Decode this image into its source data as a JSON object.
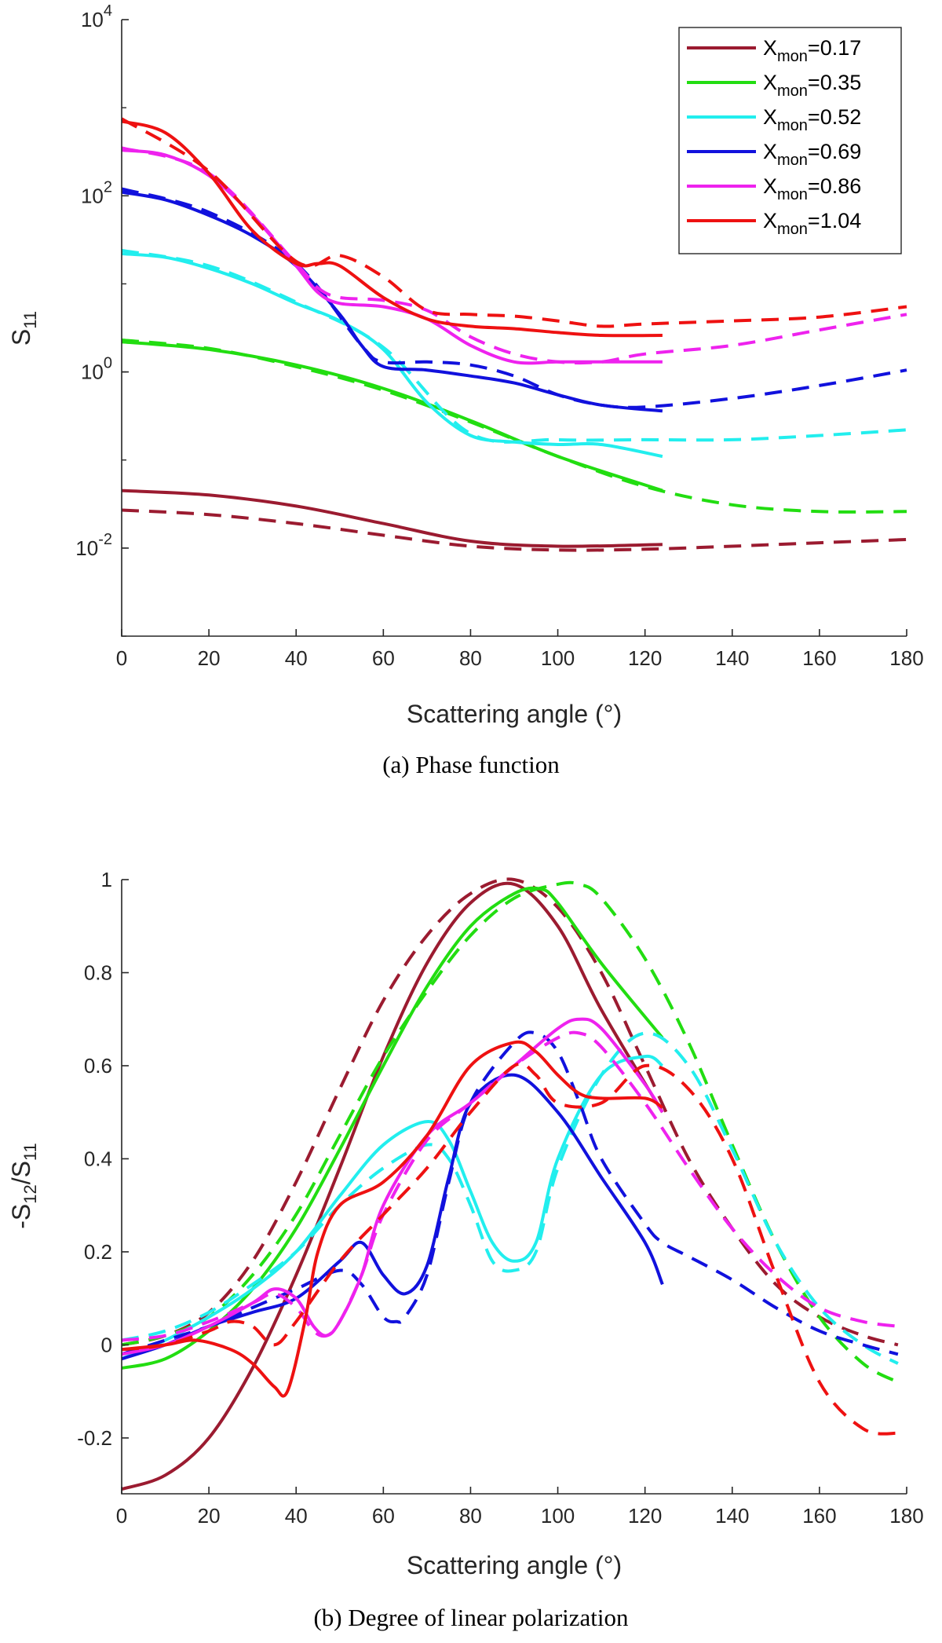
{
  "chart_data": [
    {
      "type": "line",
      "caption": "(a)   Phase function",
      "xlabel": "Scattering angle (°)",
      "ylabel": "S",
      "ylabel_sub": "11",
      "yscale": "log",
      "xlim": [
        0,
        180
      ],
      "ylim": [
        0.001,
        10000
      ],
      "xticks": [
        "0",
        "20",
        "40",
        "60",
        "80",
        "100",
        "120",
        "140",
        "160",
        "180"
      ],
      "yticks": [
        {
          "base": "10",
          "exp": "-2",
          "value": 0.01
        },
        {
          "base": "10",
          "exp": "0",
          "value": 1
        },
        {
          "base": "10",
          "exp": "2",
          "value": 100
        },
        {
          "base": "10",
          "exp": "4",
          "value": 10000
        }
      ],
      "legend": {
        "position": "top-right",
        "entries": [
          {
            "prefix": "X",
            "sub": "mon",
            "suffix": "=0.17",
            "color": "#9B1B30"
          },
          {
            "prefix": "X",
            "sub": "mon",
            "suffix": "=0.35",
            "color": "#22DD11"
          },
          {
            "prefix": "X",
            "sub": "mon",
            "suffix": "=0.52",
            "color": "#22EEEE"
          },
          {
            "prefix": "X",
            "sub": "mon",
            "suffix": "=0.69",
            "color": "#1111DD"
          },
          {
            "prefix": "X",
            "sub": "mon",
            "suffix": "=0.86",
            "color": "#EE22EE"
          },
          {
            "prefix": "X",
            "sub": "mon",
            "suffix": "=1.04",
            "color": "#EE1111"
          }
        ]
      },
      "series": [
        {
          "name": "X_mon=0.17 (solid)",
          "color": "#9B1B30",
          "style": "solid",
          "x": [
            0,
            20,
            40,
            60,
            80,
            100,
            124
          ],
          "y": [
            0.045,
            0.04,
            0.03,
            0.019,
            0.012,
            0.0105,
            0.011
          ]
        },
        {
          "name": "X_mon=0.17 (dashed)",
          "color": "#9B1B30",
          "style": "dashed",
          "x": [
            0,
            20,
            40,
            60,
            80,
            100,
            120,
            140,
            160,
            180
          ],
          "y": [
            0.027,
            0.024,
            0.019,
            0.014,
            0.0105,
            0.0095,
            0.0097,
            0.0105,
            0.0115,
            0.0125
          ]
        },
        {
          "name": "X_mon=0.35 (solid)",
          "color": "#22DD11",
          "style": "solid",
          "x": [
            0,
            20,
            40,
            60,
            80,
            100,
            124
          ],
          "y": [
            2.2,
            1.8,
            1.2,
            0.65,
            0.28,
            0.11,
            0.045
          ]
        },
        {
          "name": "X_mon=0.35 (dashed)",
          "color": "#22DD11",
          "style": "dashed",
          "x": [
            0,
            20,
            40,
            60,
            80,
            100,
            120,
            140,
            160,
            180
          ],
          "y": [
            2.3,
            1.85,
            1.15,
            0.62,
            0.27,
            0.11,
            0.05,
            0.031,
            0.026,
            0.026
          ]
        },
        {
          "name": "X_mon=0.52 (solid)",
          "color": "#22EEEE",
          "style": "solid",
          "x": [
            0,
            10,
            20,
            30,
            40,
            50,
            60,
            70,
            80,
            90,
            100,
            110,
            124
          ],
          "y": [
            22,
            20,
            15,
            10,
            6,
            3.8,
            1.8,
            0.45,
            0.19,
            0.16,
            0.15,
            0.15,
            0.11
          ]
        },
        {
          "name": "X_mon=0.52 (dashed)",
          "color": "#22EEEE",
          "style": "dashed",
          "x": [
            0,
            20,
            40,
            60,
            80,
            100,
            120,
            140,
            160,
            180
          ],
          "y": [
            24,
            16,
            6.2,
            1.9,
            0.2,
            0.17,
            0.17,
            0.17,
            0.19,
            0.22
          ]
        },
        {
          "name": "X_mon=0.69 (solid)",
          "color": "#1111DD",
          "style": "solid",
          "x": [
            0,
            10,
            20,
            30,
            40,
            50,
            55,
            60,
            70,
            80,
            90,
            100,
            110,
            124
          ],
          "y": [
            110,
            90,
            60,
            35,
            16,
            4.5,
            2,
            1.15,
            1.05,
            0.9,
            0.75,
            0.55,
            0.42,
            0.36
          ]
        },
        {
          "name": "X_mon=0.69 (dashed)",
          "color": "#1111DD",
          "style": "dashed",
          "x": [
            0,
            20,
            40,
            55,
            60,
            70,
            80,
            90,
            100,
            110,
            120,
            140,
            160,
            180
          ],
          "y": [
            120,
            65,
            17,
            2,
            1.3,
            1.3,
            1.2,
            0.9,
            0.55,
            0.42,
            0.4,
            0.5,
            0.7,
            1.05
          ]
        },
        {
          "name": "X_mon=0.86 (solid)",
          "color": "#EE22EE",
          "style": "solid",
          "x": [
            0,
            10,
            20,
            30,
            40,
            45,
            50,
            60,
            70,
            80,
            90,
            100,
            110,
            124
          ],
          "y": [
            330,
            290,
            170,
            60,
            16,
            8,
            6,
            5.5,
            4,
            2,
            1.3,
            1.3,
            1.3,
            1.3
          ]
        },
        {
          "name": "X_mon=0.86 (dashed)",
          "color": "#EE22EE",
          "style": "dashed",
          "x": [
            0,
            20,
            40,
            45,
            50,
            60,
            70,
            80,
            90,
            100,
            110,
            120,
            140,
            160,
            180
          ],
          "y": [
            350,
            180,
            17,
            9,
            7,
            6.5,
            5,
            2.5,
            1.6,
            1.3,
            1.3,
            1.6,
            2,
            3,
            4.5
          ]
        },
        {
          "name": "X_mon=1.04 (solid)",
          "color": "#EE1111",
          "style": "solid",
          "x": [
            0,
            10,
            20,
            30,
            40,
            45,
            50,
            60,
            70,
            80,
            90,
            100,
            110,
            124
          ],
          "y": [
            700,
            520,
            180,
            40,
            17,
            17,
            16,
            7,
            4,
            3.3,
            3.1,
            2.8,
            2.6,
            2.6
          ]
        },
        {
          "name": "X_mon=1.04 (dashed)",
          "color": "#EE1111",
          "style": "dashed",
          "x": [
            0,
            20,
            40,
            50,
            60,
            70,
            80,
            90,
            100,
            110,
            120,
            140,
            160,
            180
          ],
          "y": [
            750,
            190,
            18,
            21,
            12,
            5,
            4.5,
            4.3,
            3.8,
            3.3,
            3.5,
            3.8,
            4.2,
            5.5
          ]
        }
      ]
    },
    {
      "type": "line",
      "caption": "(b)   Degree of linear polarization",
      "xlabel": "Scattering angle (°)",
      "ylabel_parts": [
        "-S",
        "12",
        "/S",
        "11"
      ],
      "yscale": "linear",
      "xlim": [
        0,
        180
      ],
      "ylim": [
        -0.32,
        1.0
      ],
      "xticks": [
        "0",
        "20",
        "40",
        "60",
        "80",
        "100",
        "120",
        "140",
        "160",
        "180"
      ],
      "yticks": [
        {
          "label": "-0.2",
          "value": -0.2
        },
        {
          "label": "0",
          "value": 0
        },
        {
          "label": "0.2",
          "value": 0.2
        },
        {
          "label": "0.4",
          "value": 0.4
        },
        {
          "label": "0.6",
          "value": 0.6
        },
        {
          "label": "0.8",
          "value": 0.8
        },
        {
          "label": "1",
          "value": 1.0
        }
      ],
      "series": [
        {
          "name": "X_mon=0.17 (solid)",
          "color": "#9B1B30",
          "style": "solid",
          "x": [
            0,
            10,
            20,
            30,
            40,
            50,
            60,
            70,
            80,
            90,
            100,
            110,
            124
          ],
          "y": [
            -0.31,
            -0.28,
            -0.2,
            -0.05,
            0.15,
            0.38,
            0.62,
            0.82,
            0.95,
            0.99,
            0.9,
            0.72,
            0.5
          ]
        },
        {
          "name": "X_mon=0.17 (dashed)",
          "color": "#9B1B30",
          "style": "dashed",
          "x": [
            0,
            10,
            20,
            30,
            40,
            50,
            60,
            70,
            80,
            90,
            100,
            110,
            120,
            130,
            140,
            150,
            160,
            170,
            178
          ],
          "y": [
            0,
            0.02,
            0.07,
            0.18,
            0.35,
            0.55,
            0.74,
            0.88,
            0.97,
            1.0,
            0.94,
            0.8,
            0.6,
            0.4,
            0.25,
            0.13,
            0.06,
            0.02,
            0.0
          ]
        },
        {
          "name": "X_mon=0.35 (solid)",
          "color": "#22DD11",
          "style": "solid",
          "x": [
            0,
            10,
            20,
            30,
            40,
            50,
            60,
            70,
            80,
            90,
            96,
            100,
            110,
            124
          ],
          "y": [
            -0.05,
            -0.03,
            0.03,
            0.12,
            0.25,
            0.42,
            0.6,
            0.77,
            0.9,
            0.97,
            0.98,
            0.95,
            0.82,
            0.66
          ]
        },
        {
          "name": "X_mon=0.35 (dashed)",
          "color": "#22DD11",
          "style": "dashed",
          "x": [
            0,
            10,
            20,
            30,
            40,
            50,
            60,
            70,
            80,
            90,
            100,
            105,
            110,
            120,
            130,
            140,
            150,
            160,
            170,
            178
          ],
          "y": [
            0.0,
            0.02,
            0.06,
            0.15,
            0.28,
            0.45,
            0.62,
            0.76,
            0.88,
            0.96,
            0.99,
            0.99,
            0.96,
            0.83,
            0.65,
            0.43,
            0.22,
            0.06,
            -0.04,
            -0.08
          ]
        },
        {
          "name": "X_mon=0.52 (solid)",
          "color": "#22EEEE",
          "style": "solid",
          "x": [
            0,
            10,
            20,
            30,
            40,
            50,
            60,
            70,
            75,
            80,
            85,
            90,
            95,
            100,
            110,
            120,
            124
          ],
          "y": [
            -0.03,
            0.01,
            0.06,
            0.12,
            0.2,
            0.32,
            0.43,
            0.48,
            0.44,
            0.33,
            0.22,
            0.18,
            0.22,
            0.4,
            0.58,
            0.62,
            0.6
          ]
        },
        {
          "name": "X_mon=0.52 (dashed)",
          "color": "#22EEEE",
          "style": "dashed",
          "x": [
            0,
            10,
            20,
            30,
            40,
            50,
            60,
            70,
            75,
            80,
            85,
            90,
            95,
            100,
            110,
            120,
            130,
            140,
            150,
            160,
            170,
            178
          ],
          "y": [
            0.01,
            0.03,
            0.07,
            0.13,
            0.2,
            0.3,
            0.38,
            0.43,
            0.4,
            0.3,
            0.18,
            0.16,
            0.2,
            0.38,
            0.58,
            0.67,
            0.6,
            0.42,
            0.22,
            0.08,
            0.0,
            -0.04
          ]
        },
        {
          "name": "X_mon=0.69 (solid)",
          "color": "#1111DD",
          "style": "solid",
          "x": [
            0,
            10,
            20,
            30,
            40,
            50,
            55,
            60,
            65,
            70,
            75,
            80,
            90,
            100,
            110,
            120,
            124
          ],
          "y": [
            -0.03,
            0.0,
            0.04,
            0.07,
            0.1,
            0.18,
            0.22,
            0.15,
            0.11,
            0.17,
            0.36,
            0.52,
            0.58,
            0.5,
            0.36,
            0.22,
            0.13
          ]
        },
        {
          "name": "X_mon=0.69 (dashed)",
          "color": "#1111DD",
          "style": "dashed",
          "x": [
            0,
            10,
            20,
            30,
            40,
            50,
            55,
            60,
            63,
            65,
            70,
            75,
            80,
            90,
            95,
            100,
            105,
            110,
            120,
            124,
            130,
            140,
            150,
            160,
            170,
            178
          ],
          "y": [
            -0.02,
            0.01,
            0.04,
            0.08,
            0.12,
            0.16,
            0.13,
            0.06,
            0.05,
            0.06,
            0.15,
            0.35,
            0.52,
            0.65,
            0.67,
            0.63,
            0.52,
            0.4,
            0.26,
            0.22,
            0.19,
            0.14,
            0.08,
            0.03,
            0.0,
            -0.02
          ]
        },
        {
          "name": "X_mon=0.86 (solid)",
          "color": "#EE22EE",
          "style": "solid",
          "x": [
            0,
            10,
            20,
            30,
            35,
            40,
            44,
            47,
            50,
            55,
            60,
            70,
            80,
            90,
            100,
            105,
            110,
            120,
            124
          ],
          "y": [
            -0.02,
            0.0,
            0.04,
            0.09,
            0.12,
            0.1,
            0.04,
            0.02,
            0.05,
            0.15,
            0.3,
            0.45,
            0.52,
            0.6,
            0.68,
            0.7,
            0.68,
            0.56,
            0.5
          ]
        },
        {
          "name": "X_mon=0.86 (dashed)",
          "color": "#EE22EE",
          "style": "dashed",
          "x": [
            0,
            10,
            20,
            30,
            35,
            40,
            44,
            47,
            50,
            55,
            60,
            70,
            80,
            90,
            100,
            105,
            110,
            120,
            130,
            140,
            150,
            160,
            170,
            178
          ],
          "y": [
            0.01,
            0.02,
            0.05,
            0.09,
            0.11,
            0.08,
            0.03,
            0.02,
            0.05,
            0.15,
            0.28,
            0.44,
            0.52,
            0.6,
            0.66,
            0.67,
            0.64,
            0.52,
            0.38,
            0.25,
            0.15,
            0.08,
            0.05,
            0.04
          ]
        },
        {
          "name": "X_mon=1.04 (solid)",
          "color": "#EE1111",
          "style": "solid",
          "x": [
            0,
            10,
            17,
            25,
            30,
            35,
            38,
            42,
            45,
            50,
            60,
            70,
            80,
            90,
            95,
            100,
            105,
            110,
            120,
            124
          ],
          "y": [
            -0.01,
            0.0,
            0.01,
            -0.01,
            -0.04,
            -0.09,
            -0.1,
            0.05,
            0.2,
            0.3,
            0.35,
            0.45,
            0.6,
            0.65,
            0.63,
            0.58,
            0.54,
            0.53,
            0.53,
            0.51
          ]
        },
        {
          "name": "X_mon=1.04 (dashed)",
          "color": "#EE1111",
          "style": "dashed",
          "x": [
            0,
            10,
            20,
            25,
            30,
            35,
            40,
            50,
            60,
            70,
            80,
            90,
            95,
            100,
            110,
            120,
            130,
            140,
            150,
            160,
            170,
            178
          ],
          "y": [
            -0.01,
            0.0,
            0.03,
            0.05,
            0.04,
            0.0,
            0.05,
            0.18,
            0.28,
            0.38,
            0.5,
            0.6,
            0.58,
            0.52,
            0.52,
            0.6,
            0.55,
            0.4,
            0.15,
            -0.08,
            -0.18,
            -0.19
          ]
        }
      ]
    }
  ]
}
